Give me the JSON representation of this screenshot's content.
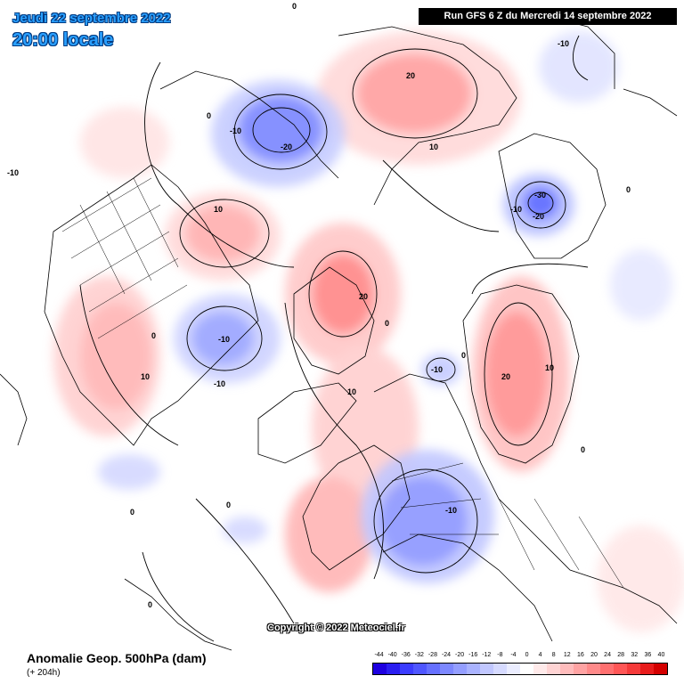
{
  "header": {
    "date": "Jeudi 22 septembre 2022",
    "time": "20:00 locale",
    "run": "Run GFS 6 Z du Mercredi 14 septembre 2022"
  },
  "copyright": "Copyright © 2022 Meteociel.fr",
  "footer": {
    "title": "Anomalie Geop. 500hPa (dam)",
    "subtitle": "(+ 204h)"
  },
  "legend": {
    "labels": [
      "-44",
      "-40",
      "-36",
      "-32",
      "-28",
      "-24",
      "-20",
      "-16",
      "-12",
      "-8",
      "-4",
      "0",
      "4",
      "8",
      "12",
      "16",
      "20",
      "24",
      "28",
      "32",
      "36",
      "40"
    ],
    "colors": [
      "#1e00e0",
      "#2a1ef0",
      "#3b3cff",
      "#4f56ff",
      "#6670ff",
      "#7d88ff",
      "#949eff",
      "#aab3ff",
      "#c1c7ff",
      "#d6daff",
      "#ebedff",
      "#ffffff",
      "#ffeaea",
      "#ffd4d4",
      "#ffbcbc",
      "#ffa3a3",
      "#ff8a8a",
      "#ff7070",
      "#ff5656",
      "#f53a3a",
      "#e81c1c",
      "#d40000"
    ]
  },
  "contour_labels": {
    "neg": "-10",
    "neg20": "-20",
    "neg30": "-30",
    "pos10": "10",
    "pos20": "20",
    "zero": "0"
  }
}
